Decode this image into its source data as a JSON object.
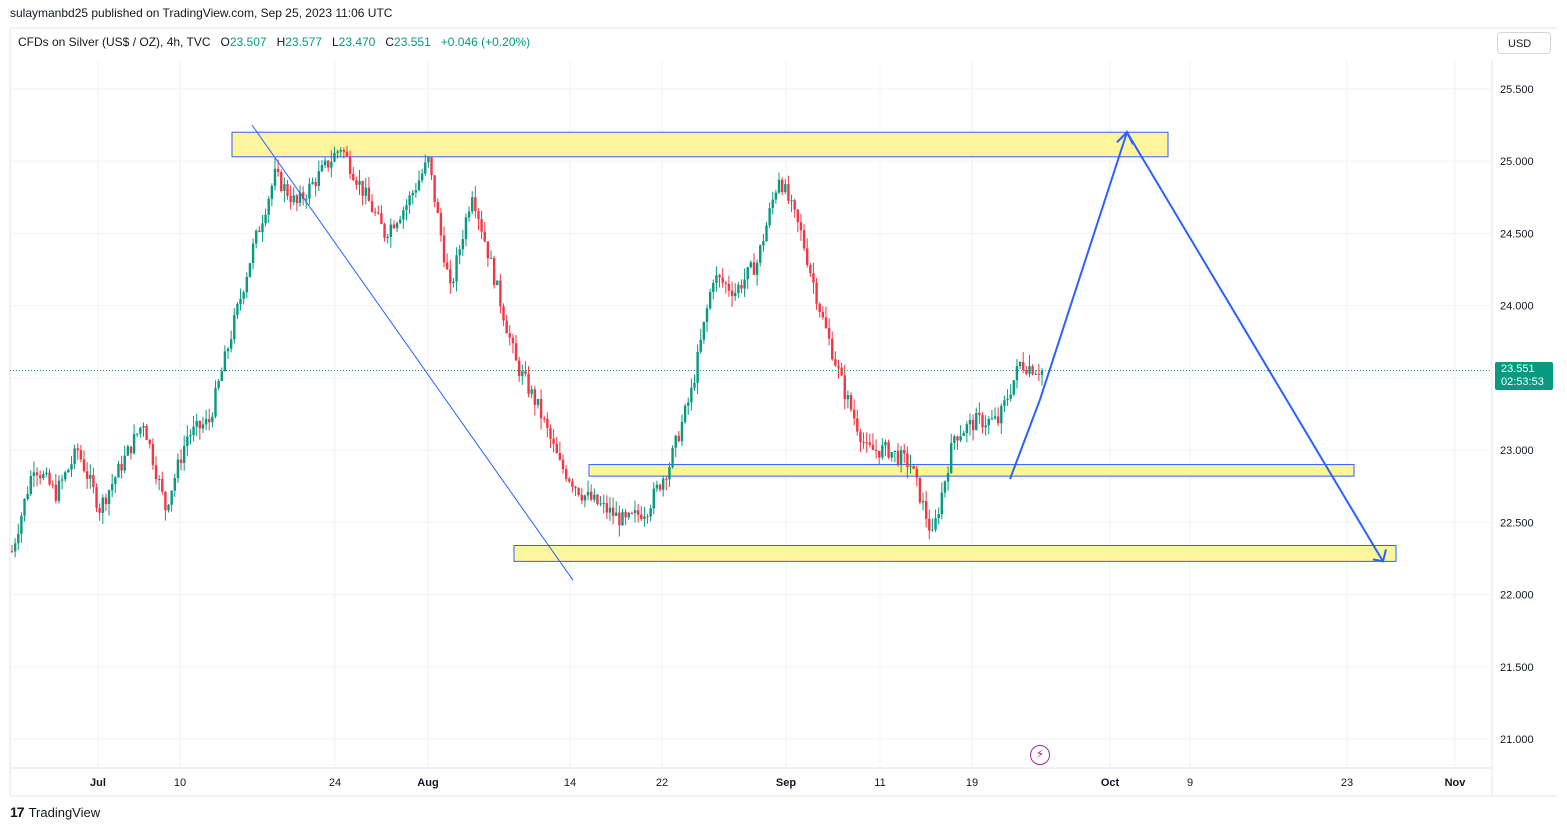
{
  "header": {
    "published": "sulaymanbd25 published on TradingView.com, Sep 25, 2023 11:06 UTC"
  },
  "legend": {
    "symbol": "CFDs on Silver (US$ / OZ), 4h, TVC",
    "o_label": "O",
    "o_value": "23.507",
    "h_label": "H",
    "h_value": "23.577",
    "l_label": "L",
    "l_value": "23.470",
    "c_label": "C",
    "c_value": "23.551",
    "change": "+0.046 (+0.20%)"
  },
  "currency_button": "USD",
  "price_tag": {
    "price": "23.551",
    "countdown": "02:53:53"
  },
  "footer": {
    "brand": "TradingView",
    "logo": "17"
  },
  "icons": {
    "replay": "lightning-bolt-icon"
  },
  "colors": {
    "up": "#089981",
    "down": "#f23645",
    "zone_fill": "#fff59d",
    "zone_border": "#2962ff",
    "arrow": "#2962ff"
  },
  "chart_data": {
    "type": "candlestick",
    "timeframe": "4h",
    "ylim": [
      20.8,
      25.7
    ],
    "y_ticks": [
      "25.500",
      "25.000",
      "24.500",
      "24.000",
      "23.500",
      "23.000",
      "22.500",
      "22.000",
      "21.500",
      "21.000"
    ],
    "x_ticks": [
      "Jul",
      "10",
      "24",
      "Aug",
      "14",
      "22",
      "Sep",
      "11",
      "19",
      "Oct",
      "9",
      "23",
      "Nov"
    ],
    "last_price": 23.551,
    "price_path": [
      [
        0,
        22.3
      ],
      [
        0.02,
        22.9
      ],
      [
        0.04,
        22.7
      ],
      [
        0.06,
        23.0
      ],
      [
        0.08,
        22.6
      ],
      [
        0.1,
        22.9
      ],
      [
        0.12,
        23.2
      ],
      [
        0.14,
        22.6
      ],
      [
        0.16,
        23.1
      ],
      [
        0.18,
        23.2
      ],
      [
        0.2,
        23.8
      ],
      [
        0.22,
        24.4
      ],
      [
        0.24,
        24.9
      ],
      [
        0.26,
        24.7
      ],
      [
        0.28,
        24.9
      ],
      [
        0.3,
        25.1
      ],
      [
        0.32,
        24.8
      ],
      [
        0.34,
        24.5
      ],
      [
        0.36,
        24.7
      ],
      [
        0.38,
        25.0
      ],
      [
        0.4,
        24.1
      ],
      [
        0.42,
        24.8
      ],
      [
        0.44,
        24.2
      ],
      [
        0.46,
        23.6
      ],
      [
        0.48,
        23.3
      ],
      [
        0.5,
        22.9
      ],
      [
        0.52,
        22.7
      ],
      [
        0.54,
        22.6
      ],
      [
        0.56,
        22.5
      ],
      [
        0.58,
        22.6
      ],
      [
        0.6,
        22.9
      ],
      [
        0.62,
        23.4
      ],
      [
        0.64,
        24.2
      ],
      [
        0.66,
        24.1
      ],
      [
        0.68,
        24.3
      ],
      [
        0.7,
        24.9
      ],
      [
        0.72,
        24.5
      ],
      [
        0.74,
        23.9
      ],
      [
        0.76,
        23.4
      ],
      [
        0.78,
        23.0
      ],
      [
        0.8,
        23.0
      ],
      [
        0.82,
        22.9
      ],
      [
        0.84,
        22.4
      ],
      [
        0.86,
        23.1
      ],
      [
        0.88,
        23.2
      ],
      [
        0.9,
        23.2
      ],
      [
        0.92,
        23.6
      ],
      [
        0.94,
        23.551
      ]
    ],
    "zones": [
      {
        "low": 25.03,
        "high": 25.2
      },
      {
        "low": 22.82,
        "high": 22.9
      },
      {
        "low": 22.23,
        "high": 22.34
      }
    ],
    "projection": [
      23.35,
      25.2,
      22.23
    ]
  }
}
